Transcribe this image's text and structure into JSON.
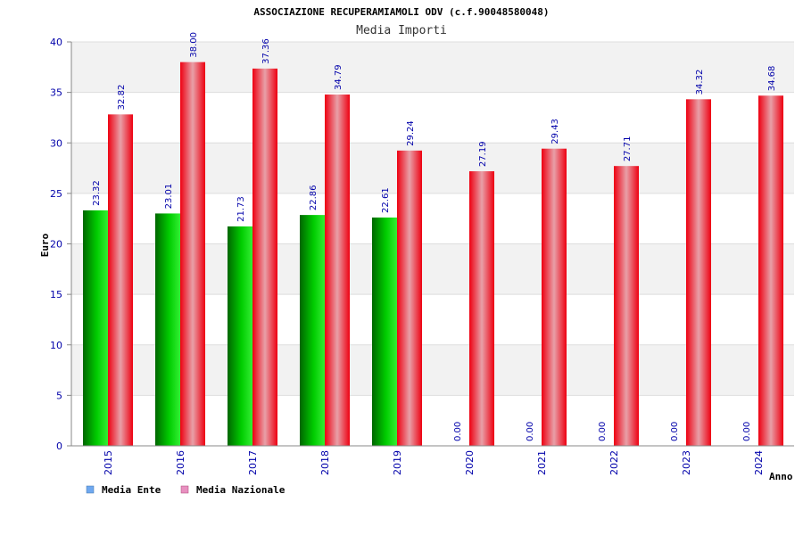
{
  "chart_data": {
    "type": "bar",
    "title": "ASSOCIAZIONE RECUPERAMIAMOLI ODV (c.f.90048580048)",
    "subtitle": "Media Importi",
    "xlabel": "Anno",
    "ylabel": "Euro",
    "ylim": [
      0,
      40
    ],
    "yticks": [
      0,
      5,
      10,
      15,
      20,
      25,
      30,
      35,
      40
    ],
    "categories": [
      "2015",
      "2016",
      "2017",
      "2018",
      "2019",
      "2020",
      "2021",
      "2022",
      "2023",
      "2024"
    ],
    "series": [
      {
        "name": "Media Ente",
        "color": "#00bb00",
        "legend_color": "#6fa8f0",
        "values": [
          23.32,
          23.01,
          21.73,
          22.86,
          22.61,
          0.0,
          0.0,
          0.0,
          0.0,
          0.0
        ],
        "labels": [
          "23.32",
          "23.01",
          "21.73",
          "22.86",
          "22.61",
          "0.00",
          "0.00",
          "0.00",
          "0.00",
          "0.00"
        ]
      },
      {
        "name": "Media Nazionale",
        "color": "#ee0011",
        "legend_color": "#e890c0",
        "values": [
          32.82,
          38.0,
          37.36,
          34.79,
          29.24,
          27.19,
          29.43,
          27.71,
          34.32,
          34.68
        ],
        "labels": [
          "32.82",
          "38.00",
          "37.36",
          "34.79",
          "29.24",
          "27.19",
          "29.43",
          "27.71",
          "34.32",
          "34.68"
        ]
      }
    ],
    "grid": true,
    "legend_position": "bottom-left"
  }
}
